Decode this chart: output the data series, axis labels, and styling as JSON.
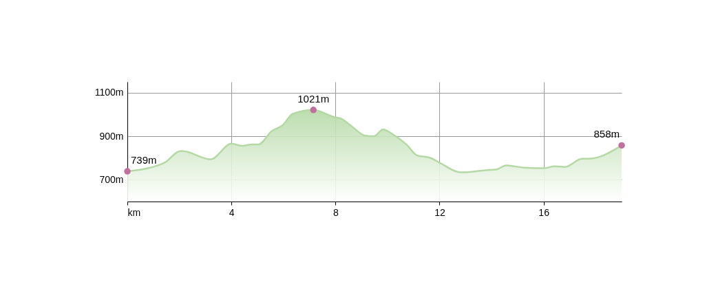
{
  "chart_data": {
    "type": "area",
    "x": [
      0,
      0.66,
      1.46,
      2.0,
      2.1,
      3.2,
      4.0,
      4.42,
      4.77,
      5.03,
      5.56,
      5.96,
      6.36,
      7.15,
      7.95,
      8.21,
      8.61,
      9.14,
      9.48,
      9.83,
      10.2,
      10.73,
      11.13,
      11.66,
      12.05,
      12.8,
      13.25,
      13.77,
      14.17,
      14.57,
      15.23,
      16.03,
      16.42,
      16.82,
      17.48,
      17.75,
      19.0
    ],
    "series": [
      {
        "color": "#b5d9a5",
        "values": [
          739,
          750,
          781,
          831,
          832,
          794,
          866,
          856,
          862,
          862,
          925,
          950,
          1003,
          1021,
          988,
          981,
          947,
          903,
          900,
          931,
          909,
          862,
          812,
          800,
          775,
          734,
          737,
          744,
          747,
          766,
          756,
          753,
          762,
          759,
          797,
          797,
          858
        ]
      },
      {
        "type": "scatter",
        "marker": "circle",
        "color": "#c0709f",
        "x": [
          0,
          7.15,
          19.0
        ],
        "values": [
          739,
          1021,
          858
        ],
        "value_labels": [
          "739m",
          "1021m",
          "858m"
        ]
      }
    ],
    "xlim": [
      0,
      19.0
    ],
    "xticks": [
      {
        "value": 0,
        "label": "km"
      },
      4,
      8,
      12,
      16
    ],
    "ylim": [
      600,
      1150
    ],
    "yticks": [
      {
        "value": 700,
        "label": "700m"
      },
      {
        "value": 900,
        "label": "900m"
      },
      {
        "value": 1100,
        "label": "1100m"
      }
    ],
    "grid": true
  }
}
